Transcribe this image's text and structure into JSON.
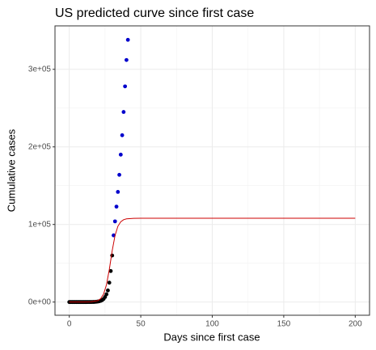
{
  "chart_data": {
    "type": "scatter",
    "title": "US predicted curve since first case",
    "x_label": "Days since first case",
    "y_label": "Cumulative cases",
    "xlim": [
      -10,
      210
    ],
    "ylim": [
      -17000,
      356000
    ],
    "xticks": [
      0,
      50,
      100,
      150,
      200
    ],
    "yticks": [
      {
        "value": 0,
        "label": "0e+00"
      },
      {
        "value": 100000,
        "label": "1e+05"
      },
      {
        "value": 200000,
        "label": "2e+05"
      },
      {
        "value": 300000,
        "label": "3e+05"
      }
    ],
    "grid": true,
    "minor_grid": true,
    "series": [
      {
        "type": "scatter",
        "color": "#000000",
        "x": [
          0,
          1,
          2,
          3,
          4,
          5,
          6,
          7,
          8,
          9,
          10,
          11,
          12,
          13,
          14,
          15,
          16,
          17,
          18,
          19,
          20,
          21,
          22,
          23,
          24,
          25,
          26,
          27,
          28,
          29,
          30
        ],
        "values": [
          1,
          1,
          2,
          2,
          5,
          5,
          5,
          6,
          6,
          8,
          12,
          15,
          15,
          35,
          60,
          70,
          100,
          150,
          220,
          450,
          700,
          1000,
          1600,
          2500,
          4000,
          6500,
          10000,
          15000,
          25000,
          40000,
          60000
        ]
      },
      {
        "type": "scatter",
        "color": "#0000cc",
        "x": [
          31,
          32,
          33,
          34,
          35,
          36,
          37,
          38,
          39,
          40,
          41
        ],
        "values": [
          86000,
          104000,
          123000,
          142000,
          164000,
          190000,
          215000,
          245000,
          278000,
          312000,
          338000
        ]
      },
      {
        "type": "line",
        "color": "#cc0000",
        "x": [
          0,
          10,
          15,
          20,
          22,
          24,
          26,
          28,
          30,
          32,
          34,
          36,
          38,
          40,
          45,
          50,
          100,
          150,
          200
        ],
        "values": [
          0,
          21,
          198,
          1850,
          4440,
          10300,
          22200,
          42000,
          66000,
          85800,
          97700,
          103500,
          106150,
          107240,
          107920,
          108000,
          108000,
          108000,
          108000
        ]
      }
    ]
  }
}
